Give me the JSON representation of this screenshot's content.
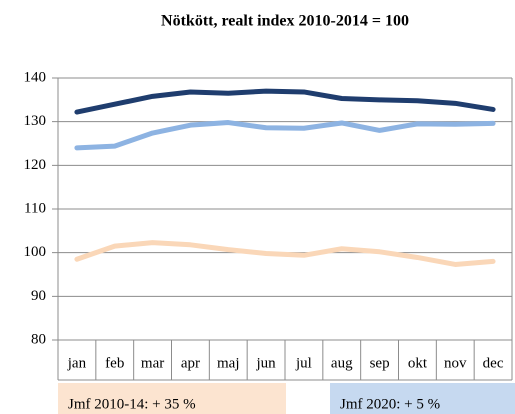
{
  "chart_data": {
    "type": "line",
    "title": "Nötkött, realt index 2010-2014 = 100",
    "categories": [
      "jan",
      "feb",
      "mar",
      "apr",
      "maj",
      "jun",
      "jul",
      "aug",
      "sep",
      "okt",
      "nov",
      "dec"
    ],
    "series": [
      {
        "color": "#1f3d6e",
        "values": [
          132.2,
          134,
          135.8,
          136.8,
          136.5,
          137,
          136.8,
          135.3,
          135,
          134.8,
          134.2,
          132.8
        ]
      },
      {
        "color": "#8db3e2",
        "values": [
          124,
          124.4,
          127.4,
          129.2,
          129.8,
          128.6,
          128.5,
          129.7,
          128,
          129.5,
          129.4,
          129.6
        ]
      },
      {
        "color": "#fad7b8",
        "values": [
          98.5,
          101.5,
          102.3,
          101.8,
          100.7,
          99.8,
          99.4,
          100.9,
          100.2,
          98.9,
          97.3,
          98
        ]
      }
    ],
    "ylim": [
      80,
      140
    ],
    "yticks": [
      80,
      90,
      100,
      110,
      120,
      130,
      140
    ],
    "grid": true,
    "annotations": [
      {
        "text": "Jmf 2010-14: + 35 %",
        "color": "#fce4d0"
      },
      {
        "text": "Jmf 2020: + 5 %",
        "color": "#c6d9f0"
      }
    ]
  }
}
